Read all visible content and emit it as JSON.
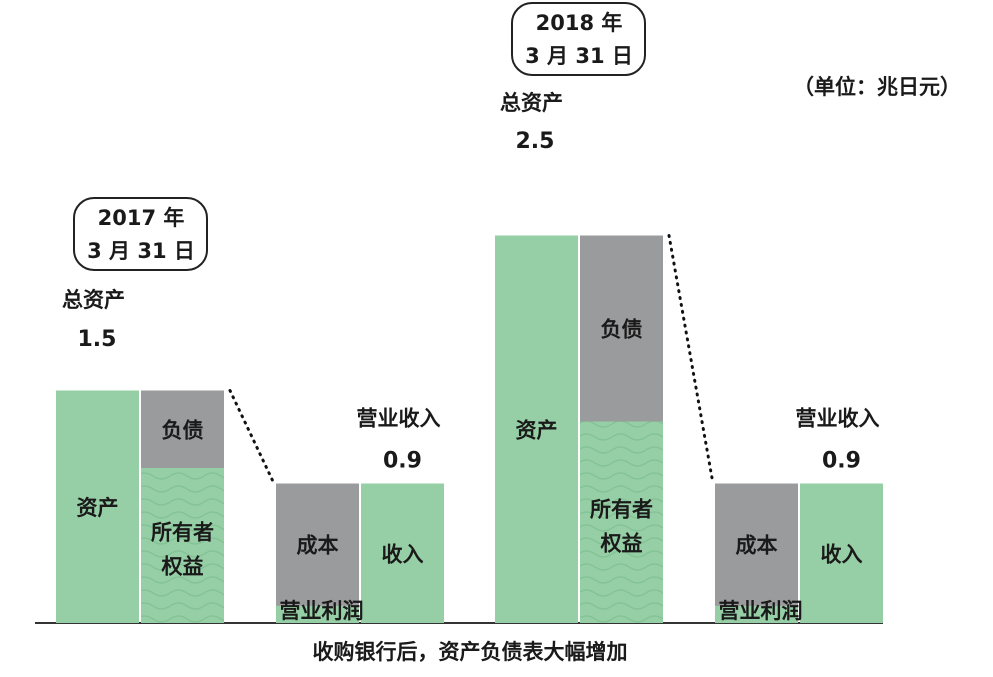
{
  "chart_data": {
    "type": "bar",
    "unit_label": "（单位：兆日元）",
    "footer": "收购银行后，资产负债表大幅增加",
    "colors": {
      "asset": "#96cfa6",
      "equity": "#96cfa6",
      "liability": "#9a9b9c",
      "cost": "#9a9b9c",
      "revenue": "#96cfa6",
      "profit": "#96cfa6"
    },
    "groups": [
      {
        "date_line1": "2017 年",
        "date_line2": "3 月 31 日",
        "total_label": "总资产",
        "total_value": 1.5,
        "total_value_text": "1.5",
        "balance_sheet": {
          "asset_label": "资产",
          "liability_label": "负债",
          "equity_label_line1": "所有者",
          "equity_label_line2": "权益",
          "liability_value": 0.5
        },
        "income": {
          "revenue_title": "营业收入",
          "revenue_value": 0.9,
          "revenue_value_text": "0.9",
          "revenue_label": "收入",
          "cost_label": "成本",
          "profit_label": "营业利润",
          "cost_value": 0.79
        }
      },
      {
        "date_line1": "2018 年",
        "date_line2": "3 月 31 日",
        "total_label": "总资产",
        "total_value": 2.5,
        "total_value_text": "2.5",
        "balance_sheet": {
          "asset_label": "资产",
          "liability_label": "负债",
          "equity_label_line1": "所有者",
          "equity_label_line2": "权益",
          "liability_value": 1.2
        },
        "income": {
          "revenue_title": "营业收入",
          "revenue_value": 0.9,
          "revenue_value_text": "0.9",
          "revenue_label": "收入",
          "cost_label": "成本",
          "profit_label": "营业利润",
          "cost_value": 0.79
        }
      }
    ]
  }
}
